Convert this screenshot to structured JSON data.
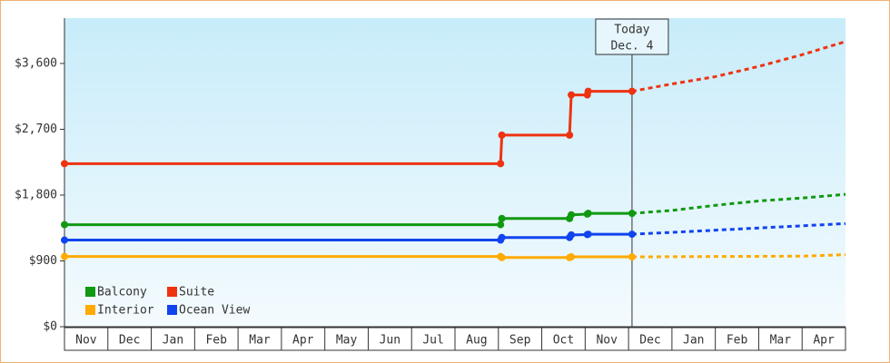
{
  "chart_data": {
    "type": "line",
    "categories": [
      "Nov",
      "Dec",
      "Jan",
      "Feb",
      "Mar",
      "Apr",
      "May",
      "Jun",
      "Jul",
      "Aug",
      "Sep",
      "Oct",
      "Nov",
      "Dec",
      "Jan",
      "Feb",
      "Mar",
      "Apr"
    ],
    "xlim": [
      0,
      18
    ],
    "ylim": [
      0,
      4220
    ],
    "yticks": [
      {
        "value": 0,
        "label": "$0"
      },
      {
        "value": 900,
        "label": "$900"
      },
      {
        "value": 1800,
        "label": "$1,800"
      },
      {
        "value": 2700,
        "label": "$2,700"
      },
      {
        "value": 3600,
        "label": "$3,600"
      }
    ],
    "annotation": {
      "x": 13.08,
      "lines": [
        "Today",
        "Dec. 4"
      ]
    },
    "legend": "bottom-left",
    "series": [
      {
        "name": "Balcony",
        "color": "#119911",
        "x": [
          0,
          10.05,
          10.08,
          11.64,
          11.68,
          12.05,
          12.07,
          13.08
        ],
        "values": [
          1395,
          1395,
          1480,
          1480,
          1530,
          1540,
          1550,
          1550
        ],
        "forecast_x": [
          13.08,
          14,
          15,
          16,
          17,
          18
        ],
        "forecast_values": [
          1550,
          1590,
          1660,
          1720,
          1760,
          1810
        ]
      },
      {
        "name": "Suite",
        "color": "#ee3311",
        "x": [
          0,
          10.05,
          10.08,
          11.64,
          11.68,
          12.05,
          12.07,
          13.08
        ],
        "values": [
          2230,
          2230,
          2620,
          2620,
          3170,
          3170,
          3220,
          3220
        ],
        "forecast_x": [
          13.08,
          14,
          15,
          16,
          17,
          18
        ],
        "forecast_values": [
          3220,
          3320,
          3420,
          3560,
          3720,
          3900
        ]
      },
      {
        "name": "Interior",
        "color": "#ffaa00",
        "x": [
          0,
          10.05,
          10.08,
          11.64,
          11.68,
          13.08
        ],
        "values": [
          960,
          960,
          946,
          946,
          955,
          955
        ],
        "forecast_x": [
          13.08,
          15,
          17,
          18
        ],
        "forecast_values": [
          955,
          960,
          965,
          985
        ]
      },
      {
        "name": "Ocean View",
        "color": "#1144ee",
        "x": [
          0,
          10.05,
          10.08,
          11.64,
          11.68,
          12.05,
          12.07,
          13.08
        ],
        "values": [
          1185,
          1185,
          1220,
          1220,
          1255,
          1260,
          1265,
          1265
        ],
        "forecast_x": [
          13.08,
          14,
          15,
          16,
          17,
          18
        ],
        "forecast_values": [
          1265,
          1290,
          1320,
          1350,
          1380,
          1410
        ]
      }
    ]
  }
}
